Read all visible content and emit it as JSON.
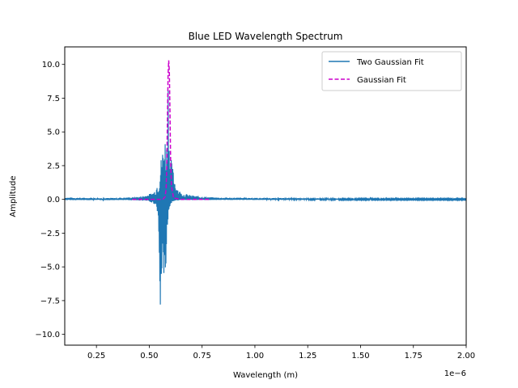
{
  "chart_data": {
    "type": "line",
    "title": "Blue LED Wavelength Spectrum",
    "xlabel": "Wavelength (m)",
    "ylabel": "Amplitude",
    "x_offset_label": "1e−6",
    "x_scale": 1e-06,
    "xlim": [
      0.1,
      2.0
    ],
    "ylim": [
      -10.8,
      11.3
    ],
    "xticks": [
      0.25,
      0.5,
      0.75,
      1.0,
      1.25,
      1.5,
      1.75,
      2.0
    ],
    "xtick_labels": [
      "0.25",
      "0.50",
      "0.75",
      "1.00",
      "1.25",
      "1.50",
      "1.75",
      "2.00"
    ],
    "yticks": [
      -10.0,
      -7.5,
      -5.0,
      -2.5,
      0.0,
      2.5,
      5.0,
      7.5,
      10.0
    ],
    "ytick_labels": [
      "−10.0",
      "−7.5",
      "−5.0",
      "−2.5",
      "0.0",
      "2.5",
      "5.0",
      "7.5",
      "10.0"
    ],
    "grid": false,
    "legend_position": "top-right",
    "series": [
      {
        "name": "Two Gaussian Fit",
        "color": "#1f77b4",
        "style": "solid",
        "x": [
          0.1,
          0.2,
          0.3,
          0.4,
          0.45,
          0.48,
          0.5,
          0.52,
          0.53,
          0.54,
          0.545,
          0.55,
          0.555,
          0.56,
          0.565,
          0.57,
          0.575,
          0.58,
          0.585,
          0.59,
          0.595,
          0.6,
          0.61,
          0.62,
          0.63,
          0.65,
          0.7,
          0.8,
          1.0,
          1.25,
          1.5,
          1.75,
          2.0
        ],
        "y_upper": [
          0.15,
          0.12,
          0.1,
          0.15,
          0.2,
          0.3,
          0.4,
          0.55,
          0.8,
          1.4,
          1.2,
          2.2,
          3.0,
          3.6,
          4.0,
          4.7,
          4.8,
          4.2,
          4.6,
          10.3,
          5.0,
          3.3,
          2.5,
          1.6,
          1.0,
          0.5,
          0.3,
          0.15,
          0.12,
          0.08,
          0.06,
          0.05,
          0.05
        ],
        "y_lower": [
          -0.05,
          -0.05,
          -0.05,
          -0.05,
          -0.08,
          -0.1,
          -0.15,
          -0.3,
          -0.5,
          -1.0,
          -4.0,
          -9.8,
          -7.8,
          -6.0,
          -6.4,
          -5.9,
          -6.6,
          -5.5,
          -4.0,
          -1.5,
          -0.8,
          -0.4,
          -0.2,
          -0.1,
          -0.08,
          -0.05,
          -0.05,
          -0.04,
          -0.04,
          -0.03,
          -0.03,
          -0.03,
          -0.03
        ]
      },
      {
        "name": "Gaussian Fit",
        "color": "#cc00cc",
        "style": "dashed",
        "x": [
          0.42,
          0.5,
          0.55,
          0.565,
          0.575,
          0.58,
          0.583,
          0.586,
          0.589,
          0.592,
          0.595,
          0.598,
          0.601,
          0.605,
          0.615,
          0.65,
          0.7,
          0.79
        ],
        "y": [
          0.0,
          0.0,
          0.0,
          0.02,
          0.2,
          0.8,
          2.5,
          6.0,
          9.2,
          10.3,
          9.5,
          6.5,
          3.0,
          1.0,
          0.1,
          0.0,
          0.0,
          0.0
        ]
      }
    ]
  }
}
